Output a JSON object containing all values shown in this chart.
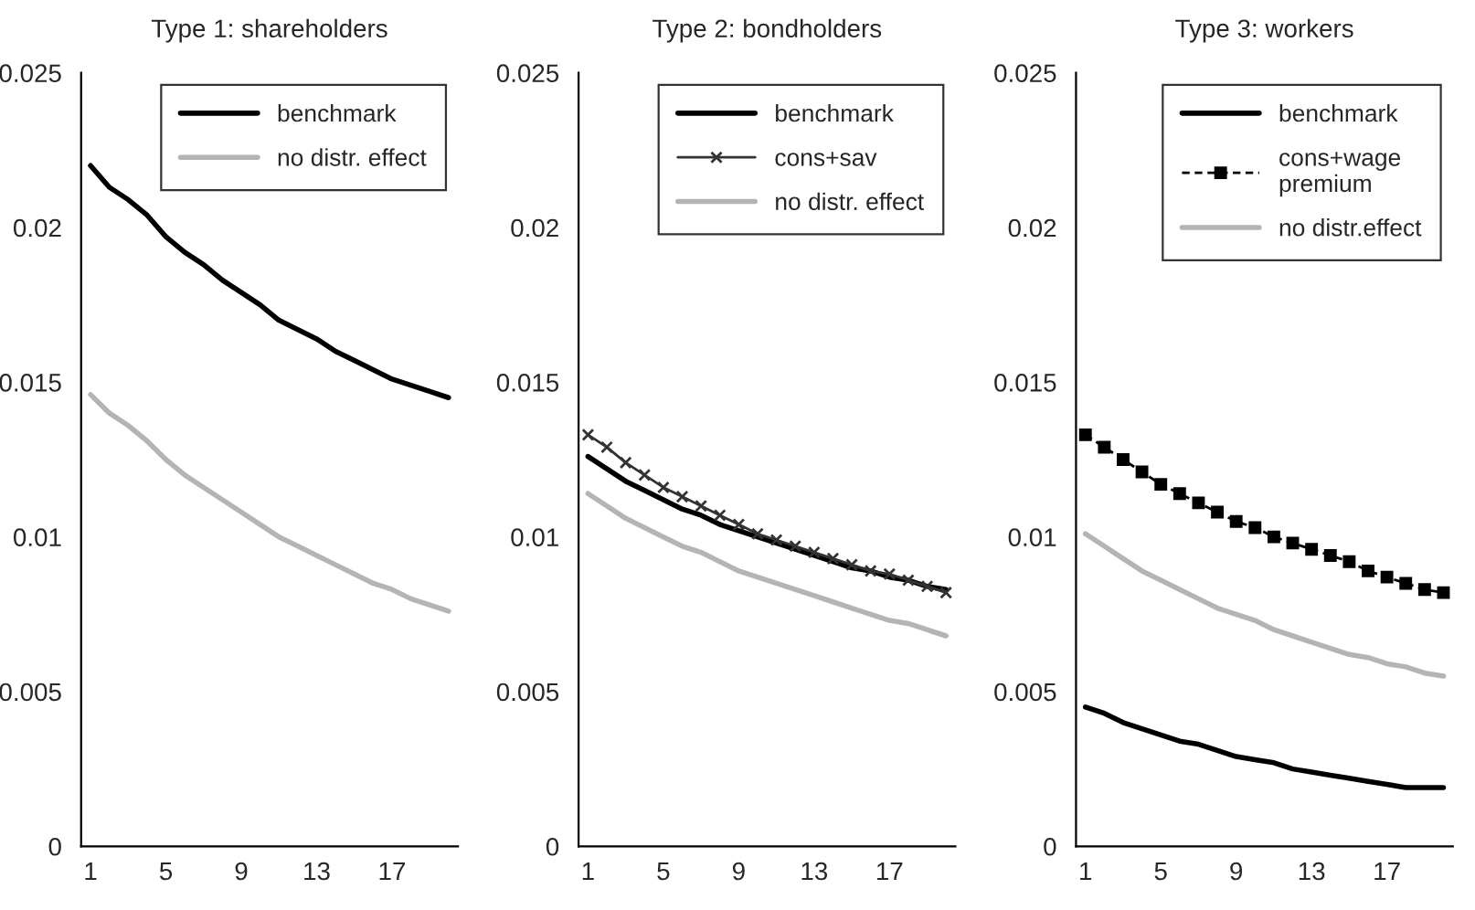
{
  "chart_data": [
    {
      "type": "line",
      "title": "Type 1: shareholders",
      "categories": [
        "1",
        null,
        null,
        null,
        "5",
        null,
        null,
        null,
        "9",
        null,
        null,
        null,
        "13",
        null,
        null,
        null,
        "17",
        null,
        null,
        null
      ],
      "ylim": [
        0,
        0.025
      ],
      "yticks": [
        0,
        0.005,
        0.01,
        0.015,
        0.02,
        0.025
      ],
      "legend": "top right",
      "series": [
        {
          "name": "benchmark",
          "color": "#000000",
          "values": [
            0.022,
            0.0213,
            0.0209,
            0.0204,
            0.0197,
            0.0192,
            0.0188,
            0.0183,
            0.0179,
            0.0175,
            0.017,
            0.0167,
            0.0164,
            0.016,
            0.0157,
            0.0154,
            0.0151,
            0.0149,
            0.0147,
            0.0145
          ]
        },
        {
          "name": "no distr. effect",
          "color": "#b4b4b4",
          "values": [
            0.0146,
            0.014,
            0.0136,
            0.0131,
            0.0125,
            0.012,
            0.0116,
            0.0112,
            0.0108,
            0.0104,
            0.01,
            0.0097,
            0.0094,
            0.0091,
            0.0088,
            0.0085,
            0.0083,
            0.008,
            0.0078,
            0.0076
          ]
        }
      ]
    },
    {
      "type": "line",
      "title": "Type 2: bondholders",
      "categories": [
        "1",
        null,
        null,
        null,
        "5",
        null,
        null,
        null,
        "9",
        null,
        null,
        null,
        "13",
        null,
        null,
        null,
        "17",
        null,
        null,
        null
      ],
      "ylim": [
        0,
        0.025
      ],
      "yticks": [
        0,
        0.005,
        0.01,
        0.015,
        0.02,
        0.025
      ],
      "legend": "top right",
      "series": [
        {
          "name": "benchmark",
          "color": "#000000",
          "values": [
            0.0126,
            0.0122,
            0.0118,
            0.0115,
            0.0112,
            0.0109,
            0.0107,
            0.0104,
            0.0102,
            0.01,
            0.0098,
            0.0096,
            0.0094,
            0.0092,
            0.009,
            0.0089,
            0.0087,
            0.0086,
            0.0084,
            0.0083
          ]
        },
        {
          "name": "cons+sav",
          "color": "#333333",
          "marker": "cross",
          "values": [
            0.0133,
            0.0129,
            0.0124,
            0.012,
            0.0116,
            0.0113,
            0.011,
            0.0107,
            0.0104,
            0.0101,
            0.0099,
            0.0097,
            0.0095,
            0.0093,
            0.0091,
            0.0089,
            0.0088,
            0.0086,
            0.0084,
            0.0082
          ]
        },
        {
          "name": "no distr. effect",
          "color": "#b4b4b4",
          "values": [
            0.0114,
            0.011,
            0.0106,
            0.0103,
            0.01,
            0.0097,
            0.0095,
            0.0092,
            0.0089,
            0.0087,
            0.0085,
            0.0083,
            0.0081,
            0.0079,
            0.0077,
            0.0075,
            0.0073,
            0.0072,
            0.007,
            0.0068
          ]
        }
      ]
    },
    {
      "type": "line",
      "title": "Type 3: workers",
      "categories": [
        "1",
        null,
        null,
        null,
        "5",
        null,
        null,
        null,
        "9",
        null,
        null,
        null,
        "13",
        null,
        null,
        null,
        "17",
        null,
        null,
        null
      ],
      "ylim": [
        0,
        0.025
      ],
      "yticks": [
        0,
        0.005,
        0.01,
        0.015,
        0.02,
        0.025
      ],
      "legend": "top right",
      "series": [
        {
          "name": "benchmark",
          "color": "#000000",
          "values": [
            0.0045,
            0.0043,
            0.004,
            0.0038,
            0.0036,
            0.0034,
            0.0033,
            0.0031,
            0.0029,
            0.0028,
            0.0027,
            0.0025,
            0.0024,
            0.0023,
            0.0022,
            0.0021,
            0.002,
            0.0019,
            0.0019,
            0.0019
          ]
        },
        {
          "name": "cons+wage\npremium",
          "color": "#000000",
          "marker": "square",
          "line_style": "dashed",
          "values": [
            0.0133,
            0.0129,
            0.0125,
            0.0121,
            0.0117,
            0.0114,
            0.0111,
            0.0108,
            0.0105,
            0.0103,
            0.01,
            0.0098,
            0.0096,
            0.0094,
            0.0092,
            0.0089,
            0.0087,
            0.0085,
            0.0083,
            0.0082
          ]
        },
        {
          "name": "no distr.effect",
          "color": "#b4b4b4",
          "values": [
            0.0101,
            0.0097,
            0.0093,
            0.0089,
            0.0086,
            0.0083,
            0.008,
            0.0077,
            0.0075,
            0.0073,
            0.007,
            0.0068,
            0.0066,
            0.0064,
            0.0062,
            0.0061,
            0.0059,
            0.0058,
            0.0056,
            0.0055
          ]
        }
      ]
    }
  ]
}
